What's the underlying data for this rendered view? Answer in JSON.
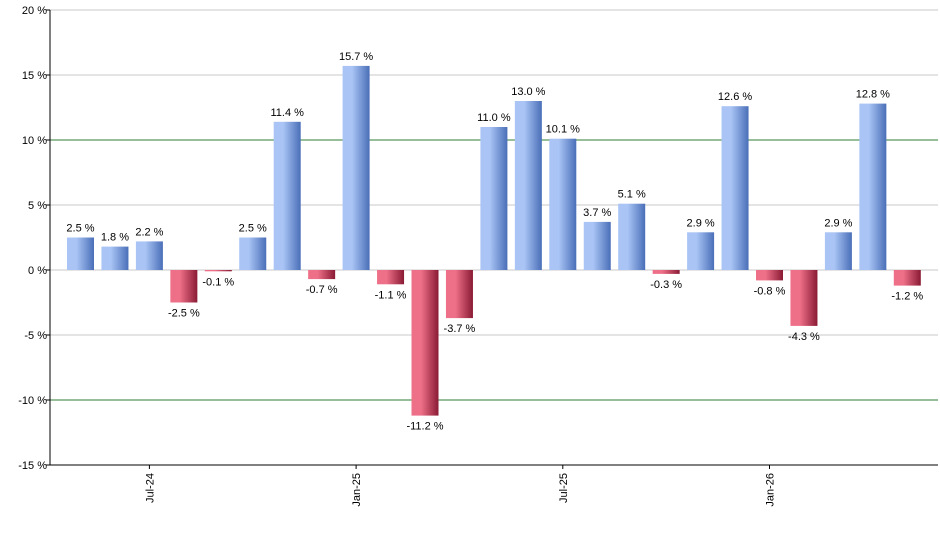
{
  "chart_data": {
    "type": "bar",
    "title": "",
    "xlabel": "",
    "ylabel": "",
    "ylim": [
      -15,
      20
    ],
    "y_ticks": [
      20,
      15,
      10,
      5,
      0,
      -5,
      -10,
      -15
    ],
    "y_tick_labels": [
      "20 %",
      "15 %",
      "10 %",
      "5 %",
      "0 %",
      "-5 %",
      "-10 %",
      "-15 %"
    ],
    "highlight_gridlines": [
      10,
      -10
    ],
    "grid": true,
    "x_tick_labels": [
      {
        "label": "Jul-24",
        "index": 2
      },
      {
        "label": "Jan-25",
        "index": 8
      },
      {
        "label": "Jul-25",
        "index": 14
      },
      {
        "label": "Jan-26",
        "index": 20
      }
    ],
    "values": [
      2.5,
      1.8,
      2.2,
      -2.5,
      -0.1,
      2.5,
      11.4,
      -0.7,
      15.7,
      -1.1,
      -11.2,
      -3.7,
      11.0,
      13.0,
      10.1,
      3.7,
      5.1,
      -0.3,
      2.9,
      12.6,
      -0.8,
      -4.3,
      2.9,
      12.8,
      -1.2
    ],
    "value_labels": [
      "2.5 %",
      "1.8 %",
      "2.2 %",
      "-2.5 %",
      "-0.1 %",
      "2.5 %",
      "11.4 %",
      "-0.7 %",
      "15.7 %",
      "-1.1 %",
      "-11.2 %",
      "-3.7 %",
      "11.0 %",
      "13.0 %",
      "10.1 %",
      "3.7 %",
      "5.1 %",
      "-0.3 %",
      "2.9 %",
      "12.6 %",
      "-0.8 %",
      "-4.3 %",
      "2.9 %",
      "12.8 %",
      "-1.2 %"
    ],
    "colors": {
      "positive_light": "#a9c4f5",
      "positive_dark": "#4a6fb8",
      "negative_light": "#ee7088",
      "negative_dark": "#8a1a34",
      "grid": "#c8c8c8",
      "highlight_grid": "#2e7d32",
      "axis": "#000000"
    }
  }
}
